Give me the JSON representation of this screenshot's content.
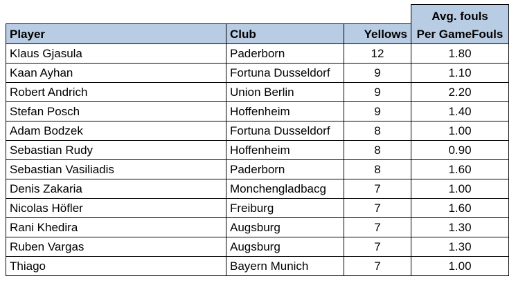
{
  "table": {
    "headers": {
      "player": "Player",
      "club": "Club",
      "yellows": "Yellows",
      "fouls_line1": "Avg. fouls",
      "fouls_line2": "Per GameFouls"
    },
    "rows": [
      {
        "player": "Klaus Gjasula",
        "club": "Paderborn",
        "yellows": "12",
        "fouls": "1.80"
      },
      {
        "player": "Kaan Ayhan",
        "club": "Fortuna Dusseldorf",
        "yellows": "9",
        "fouls": "1.10"
      },
      {
        "player": "Robert Andrich",
        "club": "Union Berlin",
        "yellows": "9",
        "fouls": "2.20"
      },
      {
        "player": "Stefan Posch",
        "club": "Hoffenheim",
        "yellows": "9",
        "fouls": "1.40"
      },
      {
        "player": "Adam Bodzek",
        "club": "Fortuna Dusseldorf",
        "yellows": "8",
        "fouls": "1.00"
      },
      {
        "player": "Sebastian Rudy",
        "club": "Hoffenheim",
        "yellows": "8",
        "fouls": "0.90"
      },
      {
        "player": "Sebastian Vasiliadis",
        "club": "Paderborn",
        "yellows": "8",
        "fouls": "1.60"
      },
      {
        "player": "Denis Zakaria",
        "club": "Monchengladbacg",
        "yellows": "7",
        "fouls": "1.00"
      },
      {
        "player": "Nicolas Höfler",
        "club": "Freiburg",
        "yellows": "7",
        "fouls": "1.60"
      },
      {
        "player": "Rani Khedira",
        "club": "Augsburg",
        "yellows": "7",
        "fouls": "1.30"
      },
      {
        "player": "Ruben Vargas",
        "club": "Augsburg",
        "yellows": "7",
        "fouls": "1.30"
      },
      {
        "player": "Thiago",
        "club": "Bayern Munich",
        "yellows": "7",
        "fouls": "1.00"
      }
    ]
  },
  "colors": {
    "header_fill": "#b8cce4",
    "grid_lines": "#000000"
  }
}
